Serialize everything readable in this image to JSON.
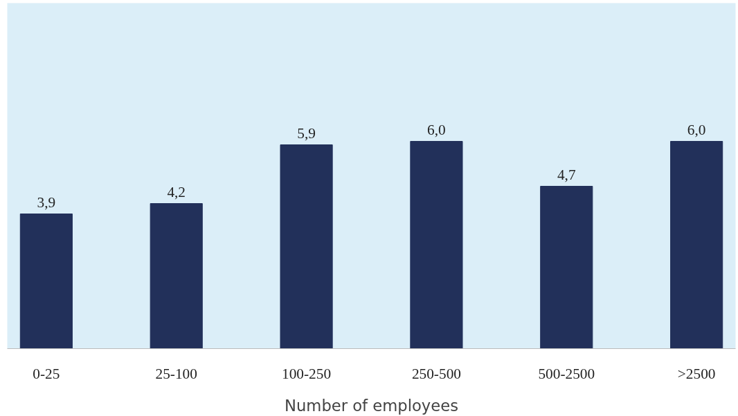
{
  "chart_data": {
    "type": "bar",
    "xlabel": "Number of employees",
    "categories": [
      "0-25",
      "25-100",
      "100-250",
      "250-500",
      "500-2500",
      ">2500"
    ],
    "values": [
      3.9,
      4.2,
      5.9,
      6.0,
      4.7,
      6.0
    ],
    "value_labels": [
      "3,9",
      "4,2",
      "5,9",
      "6,0",
      "4,7",
      "6,0"
    ],
    "color": "#22305a",
    "ylim": [
      0,
      10
    ],
    "grid": false,
    "tick_labels": "x"
  }
}
